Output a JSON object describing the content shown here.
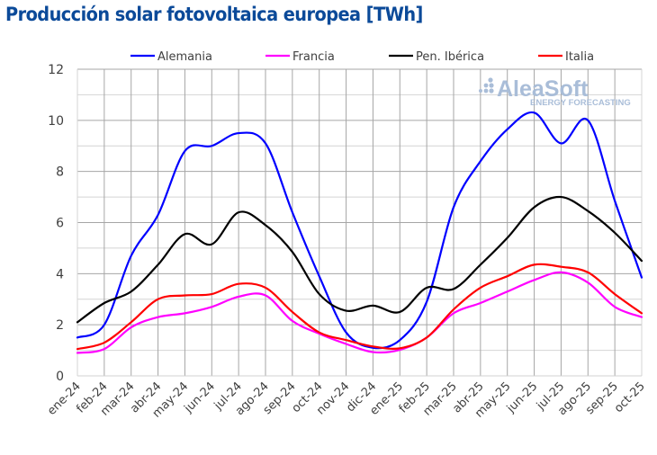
{
  "chart_data": {
    "type": "line",
    "title": "Producción solar fotovoltaica europea [TWh]",
    "xlabel": "",
    "ylabel": "",
    "ylim": [
      0,
      12
    ],
    "yticks": [
      "0",
      "2",
      "4",
      "6",
      "8",
      "10",
      "12"
    ],
    "grid": true,
    "legend_position": "top",
    "smooth": true,
    "categories": [
      "ene-24",
      "feb-24",
      "mar-24",
      "abr-24",
      "may-24",
      "jun-24",
      "jul-24",
      "ago-24",
      "sep-24",
      "oct-24",
      "nov-24",
      "dic-24",
      "ene-25",
      "feb-25",
      "mar-25",
      "abr-25",
      "may-25",
      "jun-25",
      "jul-25",
      "ago-25",
      "sep-25",
      "oct-25"
    ],
    "series": [
      {
        "name": "Alemania",
        "color": "#0000ff",
        "values": [
          1.5,
          2.0,
          4.7,
          6.3,
          8.8,
          9.0,
          9.5,
          9.1,
          6.4,
          3.9,
          1.7,
          1.1,
          1.4,
          2.9,
          6.6,
          8.4,
          9.65,
          10.3,
          9.1,
          10.0,
          6.85,
          3.85
        ]
      },
      {
        "name": "Francia",
        "color": "#ff00ff",
        "values": [
          0.9,
          1.05,
          1.9,
          2.3,
          2.45,
          2.7,
          3.1,
          3.15,
          2.15,
          1.65,
          1.25,
          0.93,
          1.02,
          1.5,
          2.45,
          2.85,
          3.3,
          3.75,
          4.05,
          3.65,
          2.7,
          2.3
        ]
      },
      {
        "name": "Pen. Ibérica",
        "color": "#000000",
        "values": [
          2.1,
          2.85,
          3.3,
          4.35,
          5.55,
          5.15,
          6.4,
          5.9,
          4.85,
          3.2,
          2.55,
          2.75,
          2.5,
          3.45,
          3.4,
          4.35,
          5.4,
          6.6,
          7.0,
          6.45,
          5.6,
          4.5
        ]
      },
      {
        "name": "Italia",
        "color": "#ff0000",
        "values": [
          1.05,
          1.3,
          2.1,
          3.0,
          3.15,
          3.2,
          3.6,
          3.45,
          2.5,
          1.7,
          1.4,
          1.15,
          1.08,
          1.5,
          2.6,
          3.45,
          3.9,
          4.35,
          4.27,
          4.05,
          3.2,
          2.45
        ]
      }
    ],
    "watermark": {
      "main": "AleaSoft",
      "sub": "ENERGY FORECASTING"
    }
  }
}
